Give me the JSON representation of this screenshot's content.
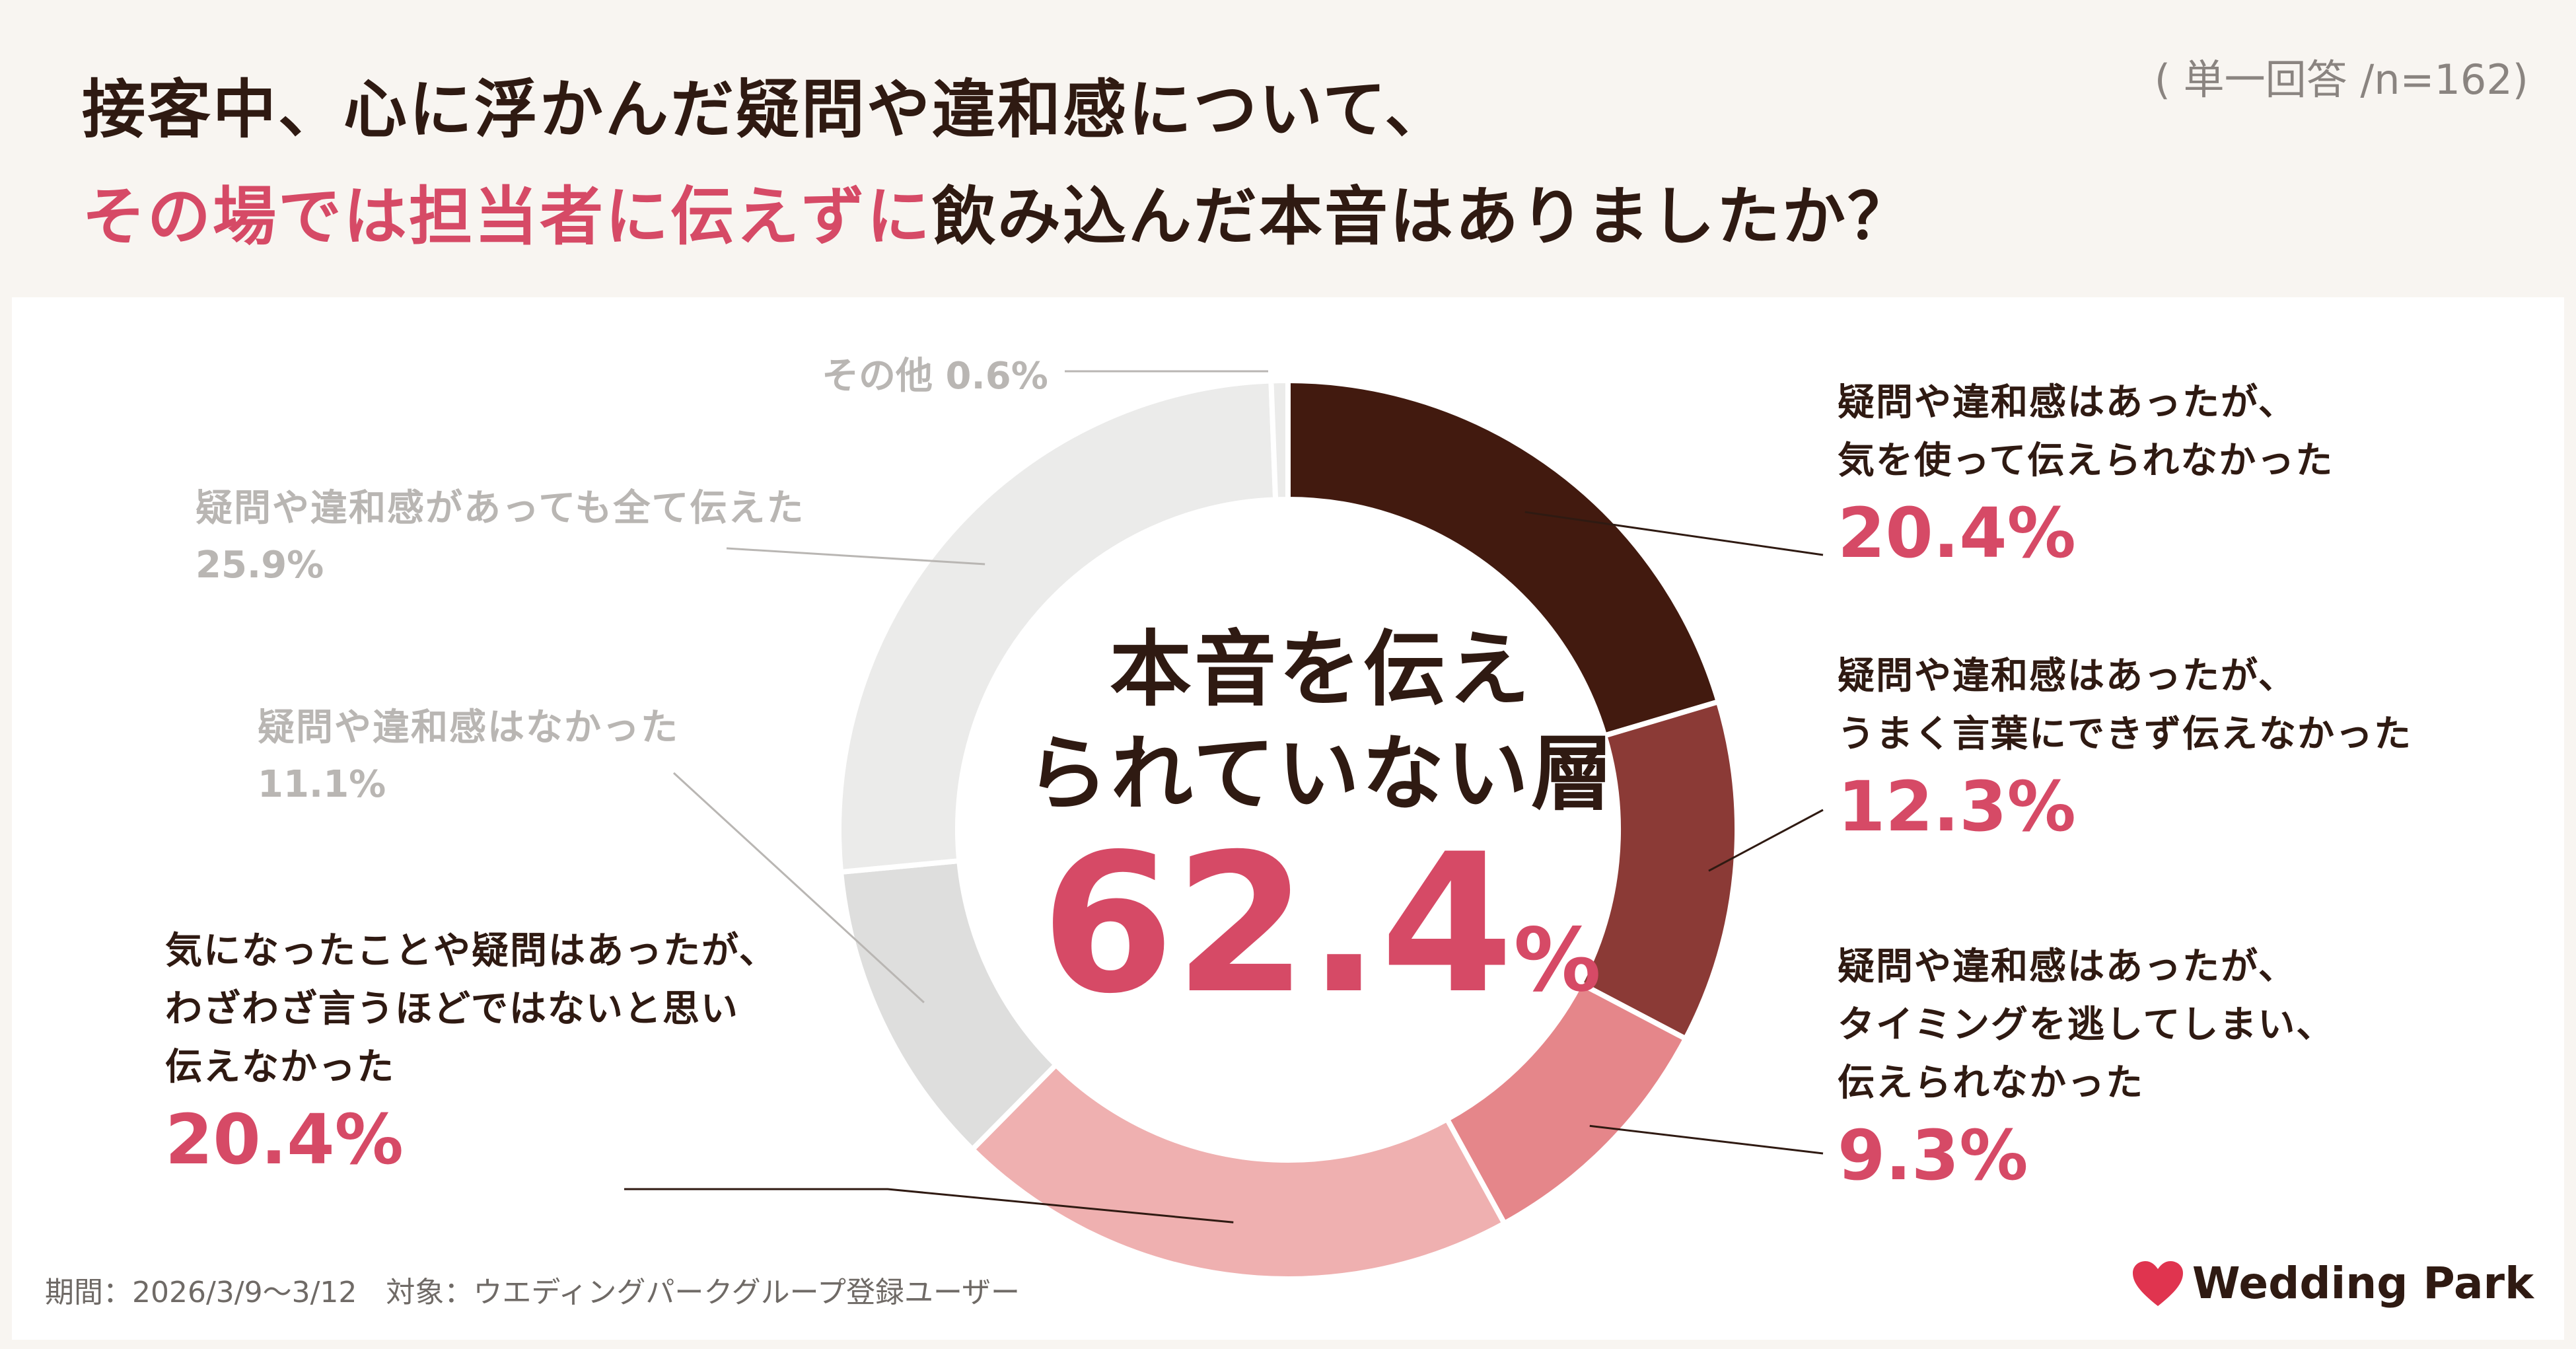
{
  "title": {
    "line1": "接客中、心に浮かんだ疑問や違和感について、",
    "line2_highlight": "その場では担当者に伝えずに",
    "line2_rest": "飲み込んだ本音はありましたか？"
  },
  "sample_note": "( 単一回答 /n=162)",
  "center": {
    "line1": "本音を伝え",
    "line2": "られていない層",
    "value": "62.4",
    "unit": "%"
  },
  "chart_data": {
    "type": "pie",
    "donut": true,
    "title": "接客中、心に浮かんだ疑問や違和感について、その場では担当者に伝えずに飲み込んだ本音はありましたか？",
    "slices": [
      {
        "label_lines": [
          "疑問や違和感はあったが、",
          "気を使って伝えられなかった"
        ],
        "value": 20.4,
        "value_label": "20.4%",
        "color": "#421a0f"
      },
      {
        "label_lines": [
          "疑問や違和感はあったが、",
          "うまく言葉にできず伝えなかった"
        ],
        "value": 12.3,
        "value_label": "12.3%",
        "color": "#8b3a36"
      },
      {
        "label_lines": [
          "疑問や違和感はあったが、",
          "タイミングを逃してしまい、",
          "伝えられなかった"
        ],
        "value": 9.3,
        "value_label": "9.3%",
        "color": "#e5868a"
      },
      {
        "label_lines": [
          "気になったことや疑問はあったが、",
          "わざわざ言うほどではないと思い",
          "伝えなかった"
        ],
        "value": 20.4,
        "value_label": "20.4%",
        "color": "#efb0b0"
      },
      {
        "label_lines": [
          "疑問や違和感はなかった"
        ],
        "value": 11.1,
        "value_label": "11.1%",
        "color": "#dededd"
      },
      {
        "label_lines": [
          "疑問や違和感があっても全て伝えた"
        ],
        "value": 25.9,
        "value_label": "25.9%",
        "color": "#ebebea"
      },
      {
        "label_lines": [
          "その他"
        ],
        "value": 0.6,
        "value_label": "0.6%",
        "color": "#ebebea"
      }
    ]
  },
  "footer": "期間：2026/3/9〜3/12　対象：ウエディングパークグループ登録ユーザー",
  "logo": {
    "text": "Wedding Park",
    "icon": "heart-icon",
    "color": "#e0344f"
  }
}
